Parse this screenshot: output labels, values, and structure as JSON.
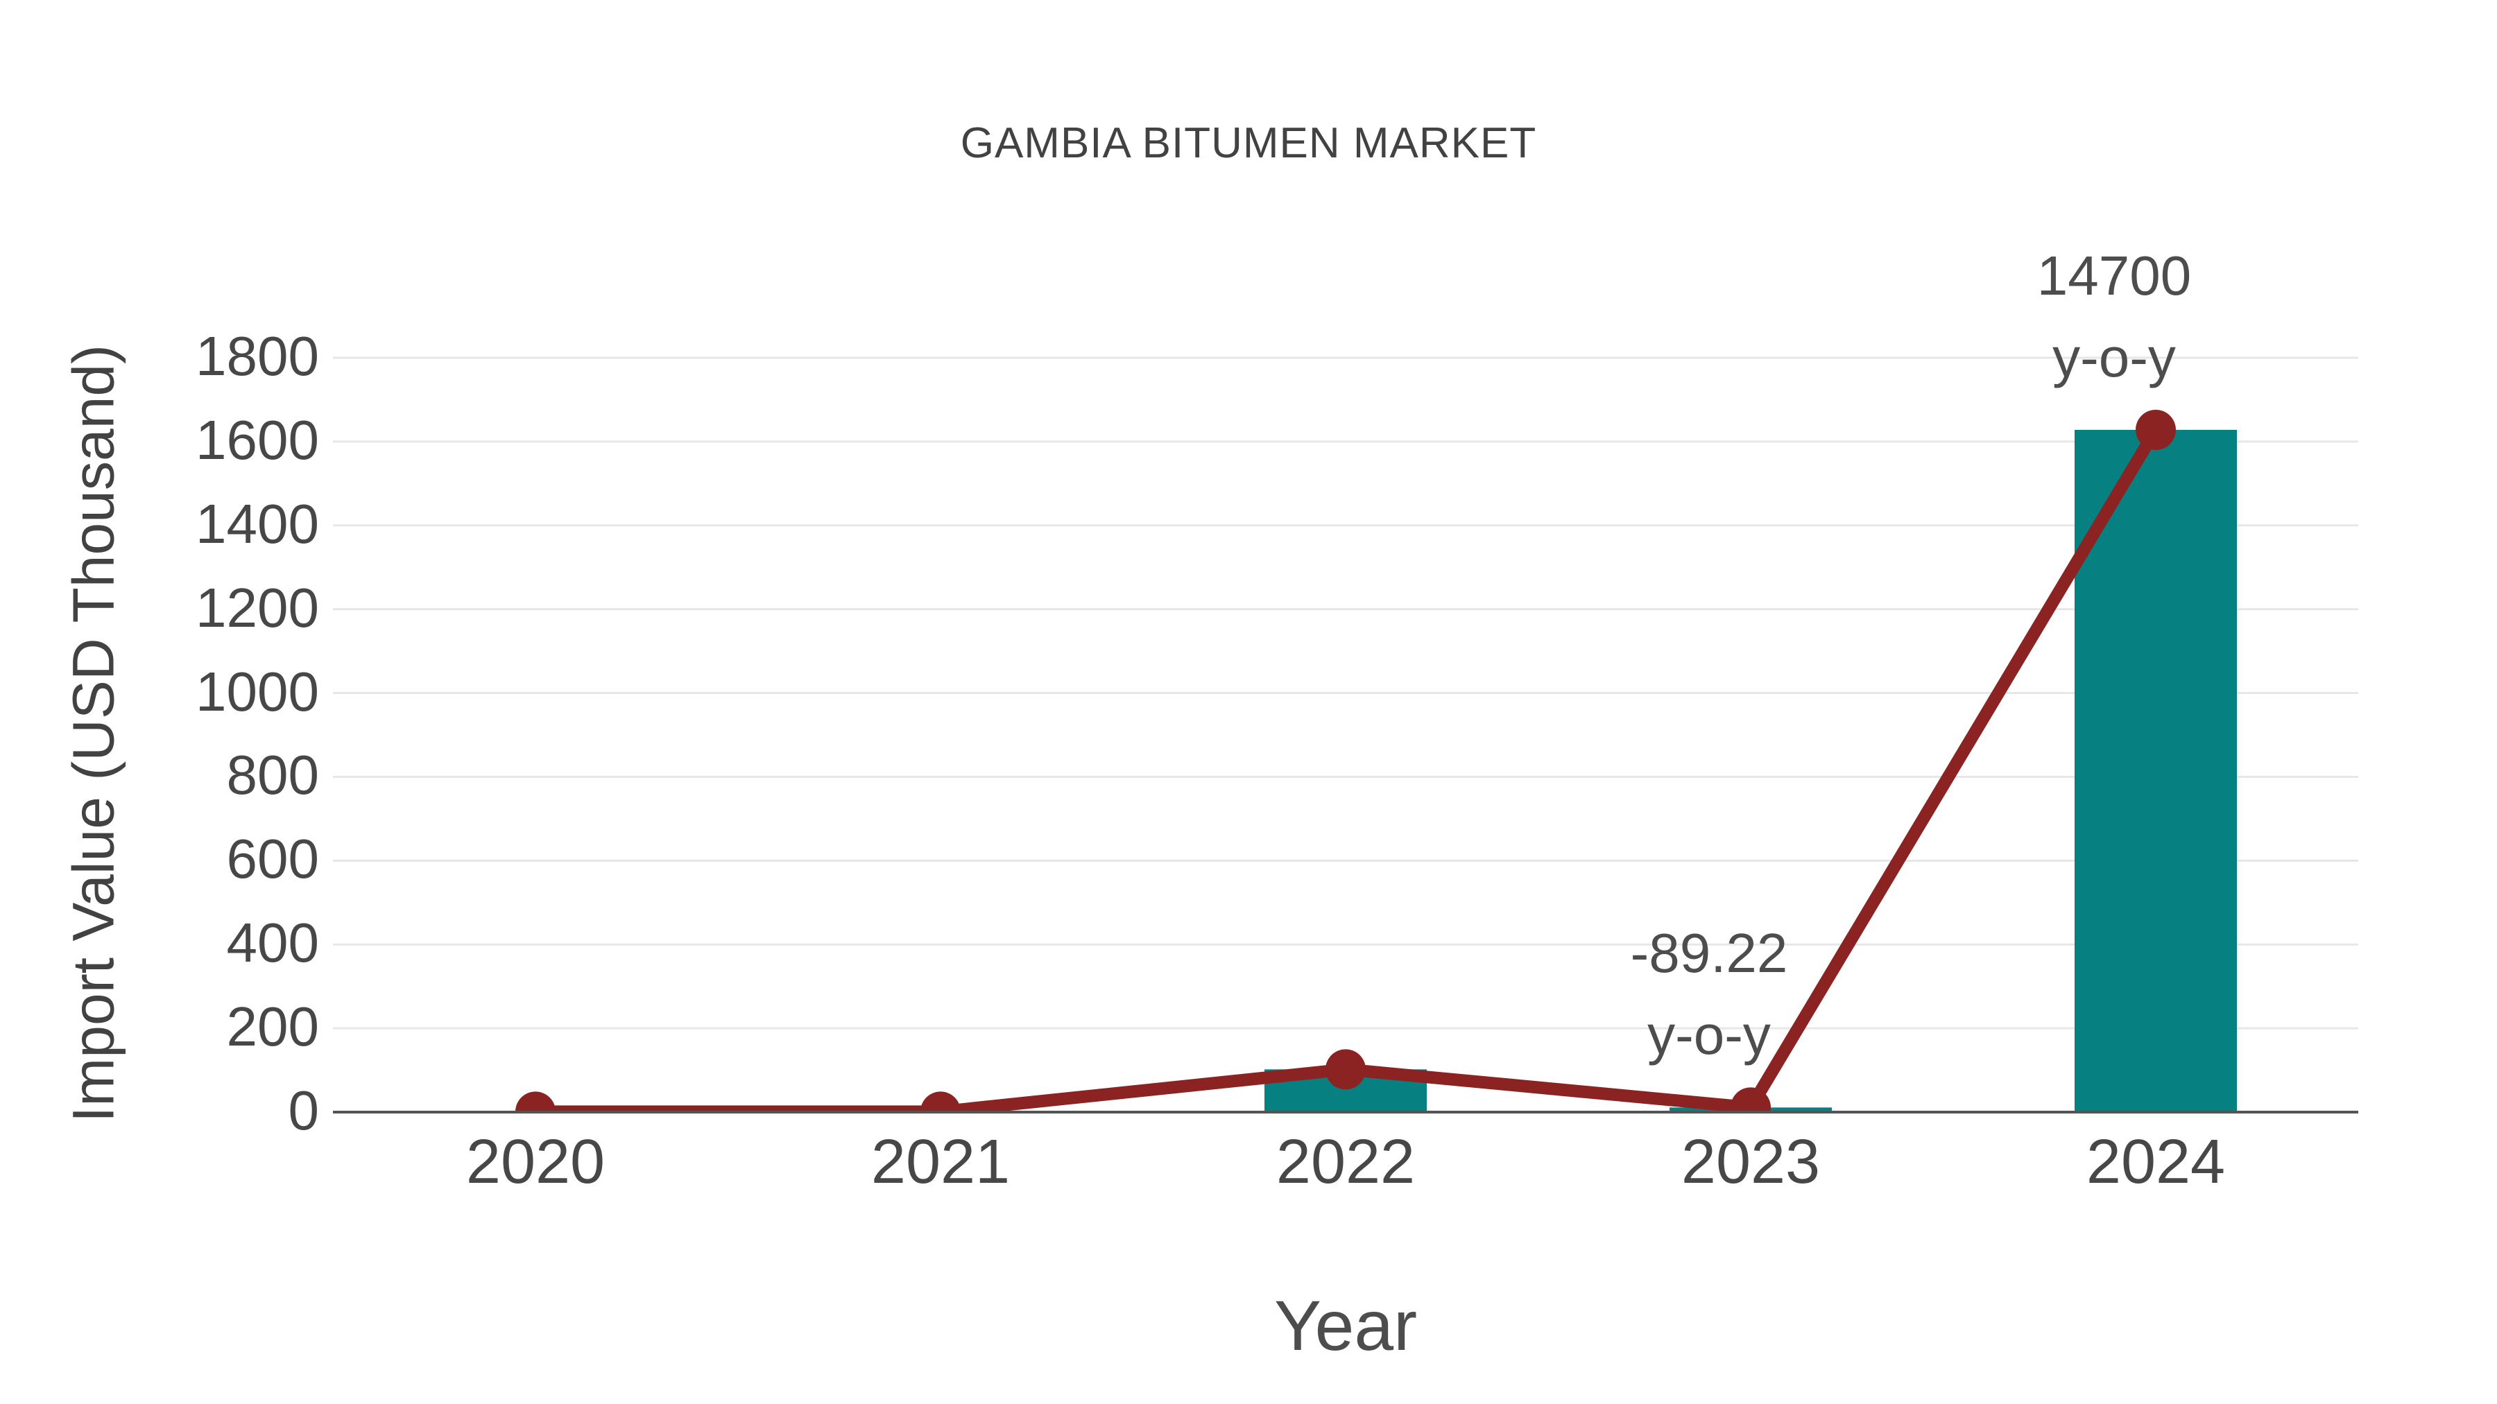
{
  "title": "GAMBIA BITUMEN MARKET",
  "chart_data": {
    "type": "bar+line",
    "title": "GAMBIA BITUMEN MARKET",
    "xlabel": "Year",
    "ylabel": "Import Value (USD Thousand)",
    "categories": [
      "2020",
      "2021",
      "2022",
      "2023",
      "2024"
    ],
    "series": [
      {
        "name": "Import Value (bars)",
        "type": "bar",
        "values": [
          1,
          1,
          102,
          11,
          1628
        ],
        "color": "#068080"
      },
      {
        "name": "Import Value (line)",
        "type": "line",
        "values": [
          1,
          1,
          102,
          11,
          1628
        ],
        "color": "#8c2323"
      }
    ],
    "ylim": [
      0,
      1800
    ],
    "yticks": [
      0,
      200,
      400,
      600,
      800,
      1000,
      1200,
      1400,
      1600,
      1800
    ],
    "grid": "horizontal",
    "legend_position": "none",
    "annotations": [
      {
        "category": "2023",
        "lines": [
          "-89.22",
          "y-o-y"
        ]
      },
      {
        "category": "2024",
        "lines": [
          "14700",
          "y-o-y"
        ]
      }
    ]
  },
  "colors": {
    "background": "#ffffff",
    "bar": "#068080",
    "line": "#8c2323",
    "marker": "#8c2323",
    "gridline": "#e7e7e7",
    "axis_line": "#545454",
    "title_text": "#424242",
    "tick_text": "#474747",
    "annotation_text": "#4d4d4d"
  }
}
